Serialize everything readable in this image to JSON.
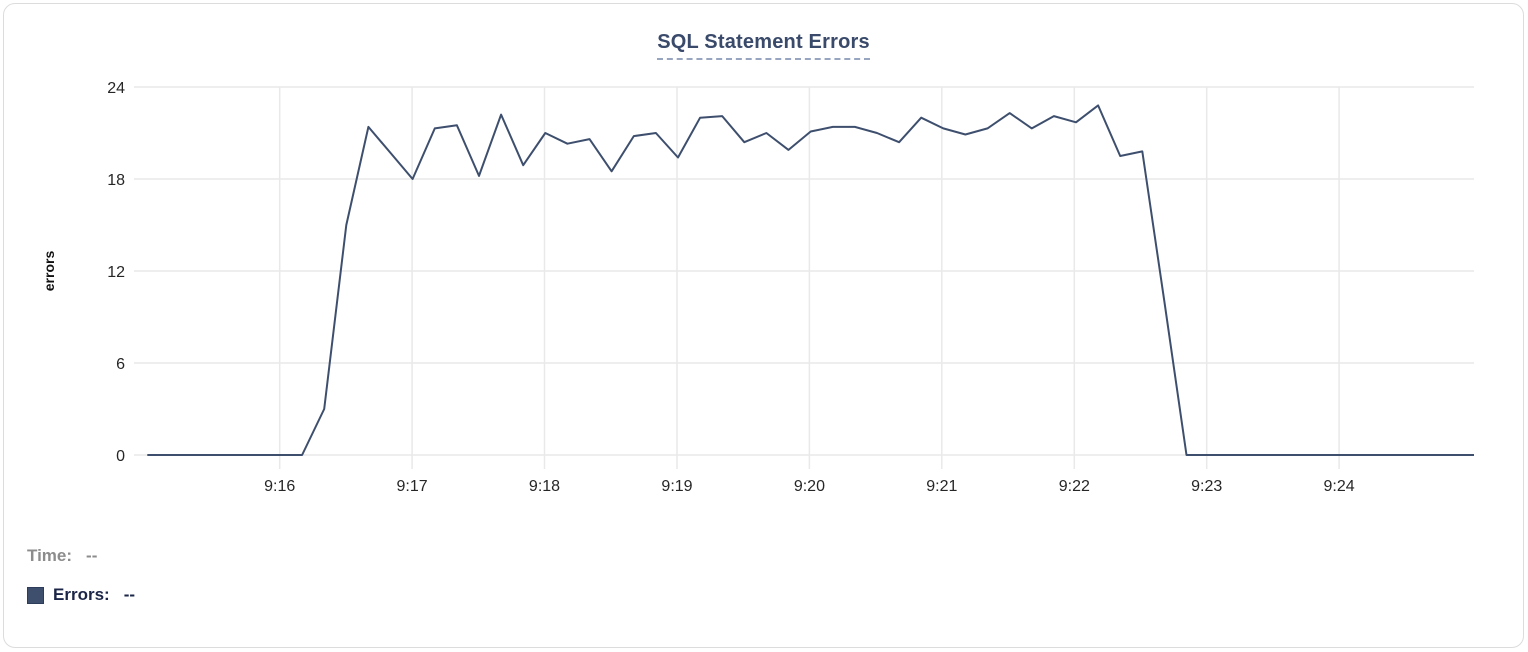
{
  "chart": {
    "title": "SQL Statement Errors"
  },
  "readout": {
    "time_label": "Time:",
    "time_value": "--",
    "errors_label": "Errors:",
    "errors_value": "--"
  },
  "colors": {
    "series_line": "#3e4f6e",
    "title": "#3a4a6b",
    "title_underline": "#98a5c0",
    "legend_swatch": "#3e4f6e",
    "time_label": "#8c8c8c",
    "errors_label": "#1b2547",
    "gridline": "#e9e9e9",
    "tick_label": "#262626",
    "card_border": "#dcdcdc"
  },
  "chart_data": {
    "type": "line",
    "title": "SQL Statement Errors",
    "xlabel": "",
    "ylabel": "errors",
    "ylim": [
      0,
      24
    ],
    "ytick_labels": [
      "24",
      "18",
      "12",
      "6",
      "0"
    ],
    "yticks": [
      24,
      18,
      12,
      6,
      0
    ],
    "xtick_labels": [
      "9:16",
      "9:17",
      "9:18",
      "9:19",
      "9:20",
      "9:21",
      "9:22",
      "9:23",
      "9:24"
    ],
    "x_start": "9:15:00",
    "x_end": "9:25:00",
    "x_interval_seconds": 10,
    "grid": true,
    "legend_position": "bottom-left",
    "series": [
      {
        "name": "Errors",
        "values": [
          0,
          0,
          0,
          0,
          0,
          0,
          0,
          0,
          3,
          15,
          21.4,
          19.7,
          18,
          21.3,
          21.5,
          18.2,
          22.2,
          18.9,
          21,
          20.3,
          20.6,
          18.5,
          20.8,
          21,
          19.4,
          22,
          22.1,
          20.4,
          21,
          19.9,
          21.1,
          21.4,
          21.4,
          21,
          20.4,
          22,
          21.3,
          20.9,
          21.3,
          22.3,
          21.3,
          22.1,
          21.7,
          22.8,
          19.5,
          19.8,
          10,
          0,
          0,
          0,
          0,
          0,
          0,
          0,
          0,
          0,
          0,
          0,
          0,
          0,
          0
        ]
      }
    ]
  }
}
